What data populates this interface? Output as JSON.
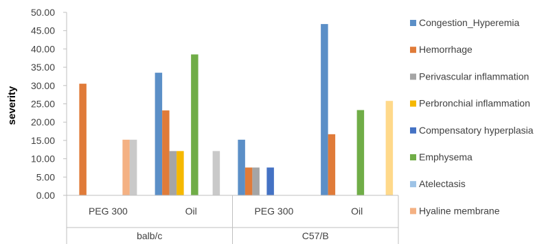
{
  "chart_data": {
    "type": "bar",
    "ylabel": "severity",
    "xlabel": "",
    "ylim": [
      0,
      50
    ],
    "yticks": [
      "0.00",
      "5.00",
      "10.00",
      "15.00",
      "20.00",
      "25.00",
      "30.00",
      "35.00",
      "40.00",
      "45.00",
      "50.00"
    ],
    "groups": [
      "balb/c",
      "C57/B"
    ],
    "categories": [
      "PEG 300",
      "Oil",
      "PEG 300",
      "Oil"
    ],
    "legend_position": "right",
    "grid": false,
    "series": [
      {
        "name": "Congestion_Hyperemia",
        "color": "#5b8fc7",
        "values": [
          0,
          33.5,
          15.2,
          46.8
        ]
      },
      {
        "name": "Hemorrhage",
        "color": "#e07b39",
        "values": [
          30.5,
          23.2,
          7.6,
          16.7
        ]
      },
      {
        "name": "Perivascular inflammation",
        "color": "#a5a5a5",
        "values": [
          0,
          12.1,
          7.6,
          0
        ]
      },
      {
        "name": "Perbronchial inflammation",
        "color": "#f5b800",
        "values": [
          0,
          12.1,
          0,
          0
        ]
      },
      {
        "name": "Compensatory hyperplasia",
        "color": "#4472c4",
        "values": [
          0,
          0,
          7.6,
          0
        ]
      },
      {
        "name": "Emphysema",
        "color": "#70ad47",
        "values": [
          0,
          38.5,
          0,
          23.3
        ]
      },
      {
        "name": "Atelectasis",
        "color": "#9dc3e6",
        "values": [
          0,
          0,
          0,
          0
        ]
      },
      {
        "name": "Hyaline membrane",
        "color": "#f4b183",
        "values": [
          15.2,
          0,
          0,
          0
        ]
      },
      {
        "name": "",
        "color": "#c9c9c9",
        "values": [
          15.2,
          12.1,
          0,
          0
        ]
      },
      {
        "name": "",
        "color": "#ffd98a",
        "values": [
          0,
          0,
          0,
          25.8
        ]
      }
    ]
  }
}
